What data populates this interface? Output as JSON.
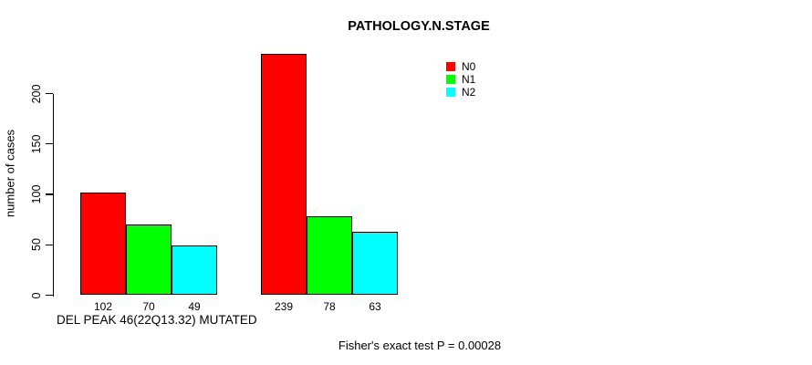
{
  "chart_data": {
    "type": "bar",
    "title": "PATHOLOGY.N.STAGE",
    "ylabel": "number of cases",
    "xlabel": "DEL PEAK 46(22Q13.32) MUTATED",
    "annotation": "Fisher's exact test P = 0.00028",
    "ylim": [
      0,
      200
    ],
    "yticks": [
      0,
      50,
      100,
      150,
      200
    ],
    "grid": false,
    "legend_position": "top-right",
    "groups": 2,
    "series": [
      {
        "name": "N0",
        "color": "#ff0000",
        "values": [
          102,
          239
        ]
      },
      {
        "name": "N1",
        "color": "#00ff00",
        "values": [
          70,
          78
        ]
      },
      {
        "name": "N2",
        "color": "#00ffff",
        "values": [
          49,
          63
        ]
      }
    ],
    "bar_border_color": "#000000",
    "background_color": "#ffffff",
    "text_color": "#000000"
  }
}
